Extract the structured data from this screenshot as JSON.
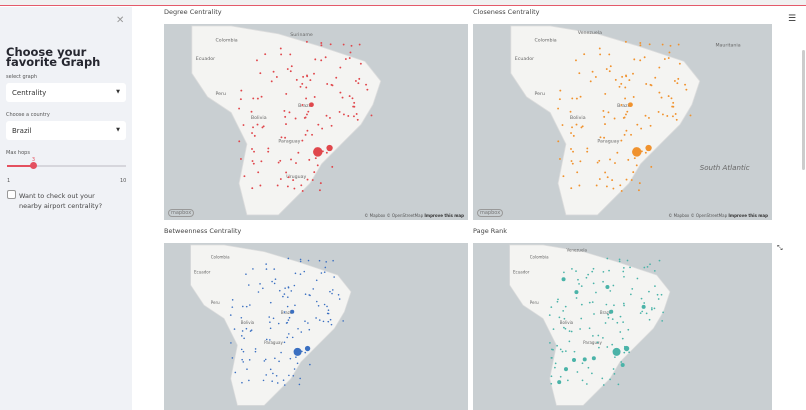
{
  "sidebar": {
    "title": "Choose your favorite Graph",
    "graph_label": "select graph",
    "graph_value": "Centrality",
    "country_label": "Choose a country",
    "country_value": "Brazil",
    "hops_label": "Max hops",
    "hops_value": "3",
    "hops_min": "1",
    "hops_max": "10",
    "hops_fraction": 0.222,
    "checkbox_label": "Want to check out your nearby airport centrality?",
    "checkbox_checked": false
  },
  "panels": [
    {
      "title": "Degree Centrality",
      "color": "#e0474c",
      "labels": [
        "Colombia",
        "Ecuador",
        "Peru",
        "Bolivia",
        "Paraguay",
        "Brazil",
        "Uruguay",
        "Suriname"
      ]
    },
    {
      "title": "Closeness Centrality",
      "color": "#f0922e",
      "labels": [
        "Venezuela",
        "Colombia",
        "Ecuador",
        "Peru",
        "Bolivia",
        "Paraguay",
        "Brazil",
        "Mauritania",
        "South Atlantic"
      ]
    },
    {
      "title": "Betweenness Centrality",
      "color": "#3a6fc1",
      "labels": [
        "Colombia",
        "Ecuador",
        "Peru",
        "Bolivia",
        "Paraguay",
        "Brazil"
      ]
    },
    {
      "title": "Page Rank",
      "color": "#4ab3a8",
      "labels": [
        "Venezuela",
        "Colombia",
        "Ecuador",
        "Peru",
        "Bolivia",
        "Paraguay",
        "Brazil"
      ]
    }
  ],
  "attribution": {
    "text": "© Mapbox © OpenStreetMap",
    "link": "Improve this map",
    "logo": "mapbox"
  },
  "icons": {
    "close": "close-icon",
    "menu": "hamburger-menu-icon",
    "expand": "fullscreen-icon"
  }
}
